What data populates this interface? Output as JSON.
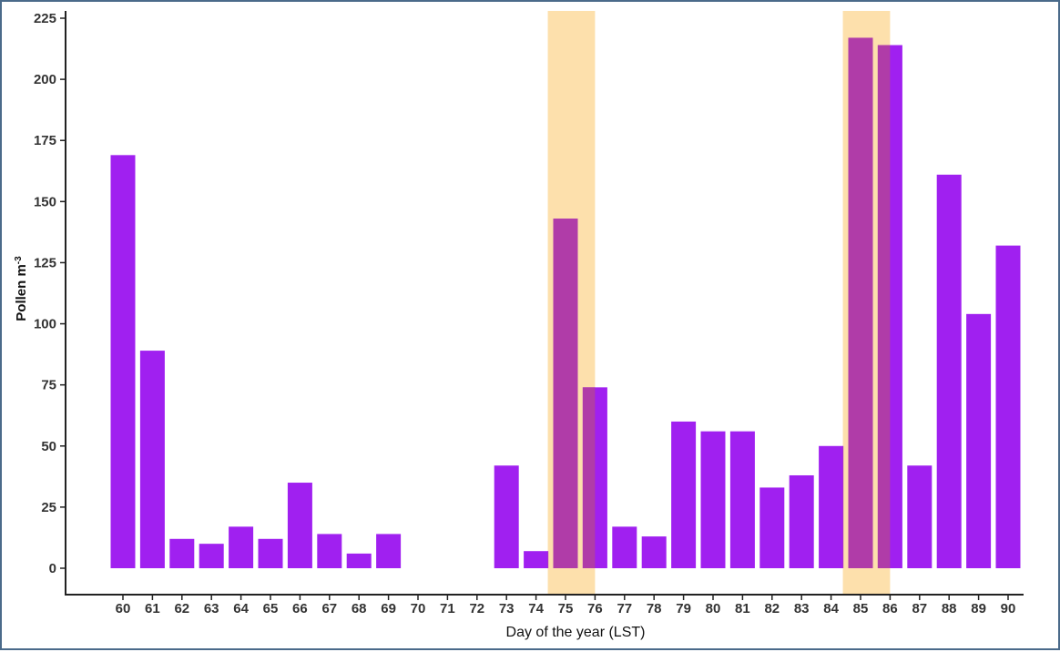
{
  "chart_data": {
    "type": "bar",
    "title": "",
    "xlabel": "Day of the year (LST)",
    "ylabel": {
      "main": "Pollen m",
      "sup": "-3"
    },
    "ylim": [
      -10,
      225
    ],
    "yticks": [
      0,
      25,
      50,
      75,
      100,
      125,
      150,
      175,
      200,
      225
    ],
    "categories": [
      "60",
      "61",
      "62",
      "63",
      "64",
      "65",
      "66",
      "67",
      "68",
      "69",
      "70",
      "71",
      "72",
      "73",
      "74",
      "75",
      "76",
      "77",
      "78",
      "79",
      "80",
      "81",
      "82",
      "83",
      "84",
      "85",
      "86",
      "87",
      "88",
      "89",
      "90"
    ],
    "values": [
      169,
      89,
      12,
      10,
      17,
      12,
      35,
      14,
      6,
      14,
      0,
      0,
      0,
      42,
      7,
      143,
      74,
      17,
      13,
      60,
      56,
      56,
      33,
      38,
      50,
      217,
      214,
      42,
      161,
      104,
      132
    ],
    "highlight_bands": [
      {
        "from_day": 74.4,
        "to_day": 76.0
      },
      {
        "from_day": 84.4,
        "to_day": 86.0
      }
    ],
    "colors": {
      "bar": "#a020f0",
      "highlight": "#fde0ac",
      "overlap": "#b03ca8",
      "axis": "#222222",
      "frame": "#4a6a8a"
    },
    "grid": false,
    "legend": "none"
  }
}
